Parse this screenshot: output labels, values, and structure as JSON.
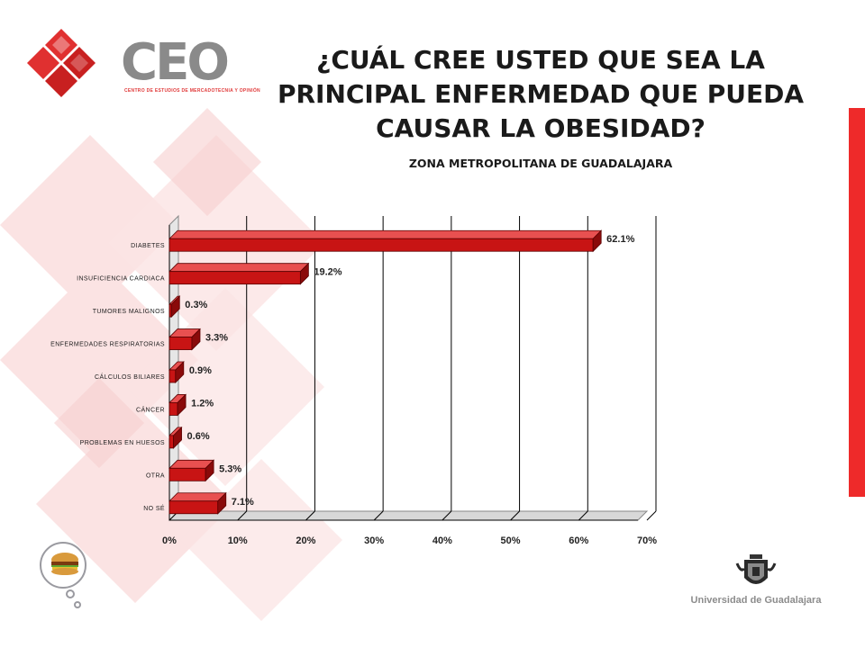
{
  "logo": {
    "letters": "CEO",
    "tagline": "CENTRO DE ESTUDIOS DE MERCADOTECNIA Y OPINIÓN",
    "icon": "ceo-red-cube-mark"
  },
  "title": "¿CUÁL CREE USTED QUE SEA LA PRINCIPAL ENFERMEDAD QUE PUEDA CAUSAR LA OBESIDAD?",
  "subtitle": "ZONA METROPOLITANA DE GUADALAJARA",
  "footer": {
    "university": "Universidad de Guadalajara",
    "university_icon": "udg-coat-of-arms",
    "bubble_icon": "hamburger-thought-bubble-icon"
  },
  "colors": {
    "bar_front": "#c81414",
    "bar_top": "#e85050",
    "bar_side": "#8a0a0a",
    "accent_strip": "#ee2a2a",
    "background_pattern": "#fbe3e3"
  },
  "chart_data": {
    "type": "bar",
    "orientation": "horizontal",
    "style": "3d",
    "categories": [
      "DIABETES",
      "INSUFICIENCIA CARDIACA",
      "TUMORES MALIGNOS",
      "ENFERMEDADES RESPIRATORIAS",
      "CÁLCULOS BILIARES",
      "CÁNCER",
      "PROBLEMAS EN HUESOS",
      "OTRA",
      "NO SÉ"
    ],
    "values": [
      62.1,
      19.2,
      0.3,
      3.3,
      0.9,
      1.2,
      0.6,
      5.3,
      7.1
    ],
    "value_labels": [
      "62.1%",
      "19.2%",
      "0.3%",
      "3.3%",
      "0.9%",
      "1.2%",
      "0.6%",
      "5.3%",
      "7.1%"
    ],
    "x_ticks": [
      "0%",
      "10%",
      "20%",
      "30%",
      "40%",
      "50%",
      "60%",
      "70%"
    ],
    "xlim": [
      0,
      70
    ],
    "grid": true,
    "legend": "none"
  }
}
